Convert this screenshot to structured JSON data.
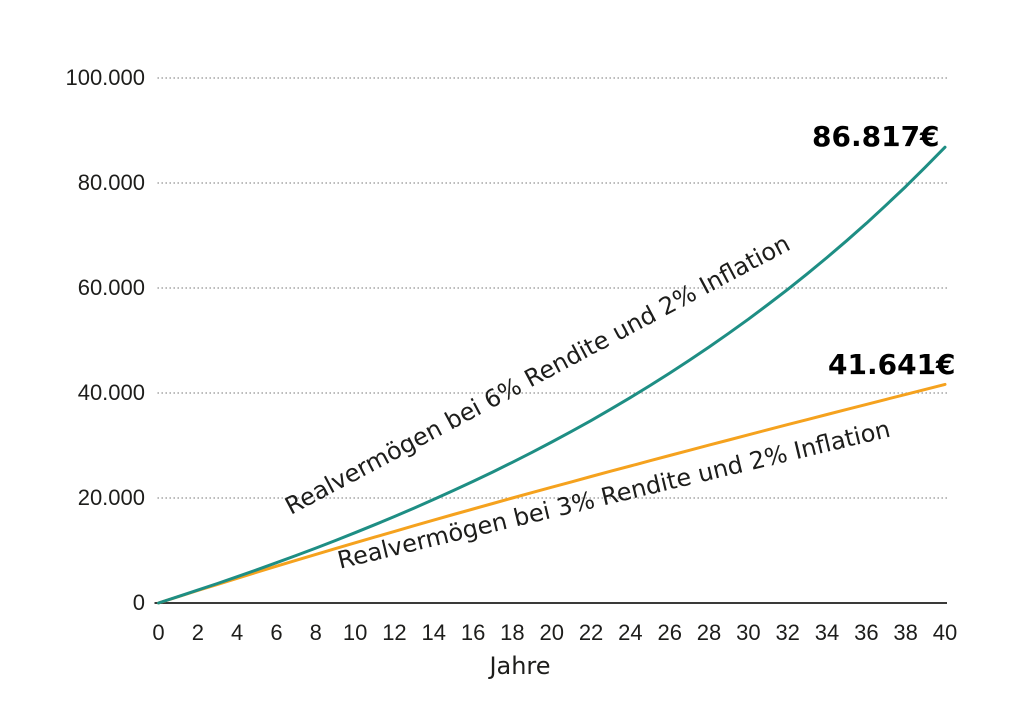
{
  "chart_data": {
    "type": "line",
    "title": "",
    "xlabel": "Jahre",
    "ylabel": "",
    "xlim": [
      0,
      40
    ],
    "ylim": [
      0,
      100000
    ],
    "grid": "horizontal-dotted",
    "legend_position": "inline-rotated-labels",
    "background_color": "#ffffff",
    "grid_color": "#9b9b9b",
    "axis_color": "#3a3a39",
    "text_color": "#1d1d1b",
    "x_ticks": [
      "0",
      "2",
      "4",
      "6",
      "8",
      "10",
      "12",
      "14",
      "16",
      "18",
      "20",
      "22",
      "24",
      "26",
      "28",
      "30",
      "32",
      "34",
      "36",
      "38",
      "40"
    ],
    "y_ticks": [
      {
        "value": 0,
        "label": "0"
      },
      {
        "value": 20000,
        "label": "20.000"
      },
      {
        "value": 40000,
        "label": "40.000"
      },
      {
        "value": 60000,
        "label": "60.000"
      },
      {
        "value": 80000,
        "label": "80.000"
      },
      {
        "value": 100000,
        "label": "100.000"
      }
    ],
    "x": [
      0,
      1,
      2,
      3,
      4,
      5,
      6,
      7,
      8,
      9,
      10,
      11,
      12,
      13,
      14,
      15,
      16,
      17,
      18,
      19,
      20,
      21,
      22,
      23,
      24,
      25,
      26,
      27,
      28,
      29,
      30,
      31,
      32,
      33,
      34,
      35,
      36,
      37,
      38,
      39,
      40
    ],
    "series": [
      {
        "name": "Realvermögen bei 6% Rendite und 2% Inflation",
        "color": "#1E8E84",
        "end_label": "86.817€",
        "end_value": 86817,
        "values": [
          0,
          1214,
          2452,
          3716,
          5006,
          6324,
          7672,
          9051,
          10463,
          11910,
          13394,
          14915,
          16477,
          18081,
          19728,
          21423,
          23165,
          24957,
          26803,
          28704,
          30664,
          32684,
          34766,
          36915,
          39133,
          41422,
          43788,
          46231,
          48755,
          51364,
          54062,
          56852,
          59739,
          62727,
          65817,
          69018,
          72332,
          75764,
          79319,
          83001,
          86817
        ]
      },
      {
        "name": "Realvermögen bei 3% Rendite und 2% Inflation",
        "color": "#F5A21E",
        "end_label": "41.641€",
        "end_value": 41641,
        "values": [
          0,
          1196,
          2379,
          3552,
          4713,
          5864,
          7004,
          8134,
          9255,
          10366,
          11468,
          12561,
          13646,
          14722,
          15791,
          16852,
          17905,
          18952,
          19991,
          21024,
          22051,
          23072,
          24088,
          25098,
          26102,
          27100,
          28096,
          29085,
          30070,
          31052,
          32030,
          33004,
          33974,
          34942,
          35907,
          36868,
          37828,
          38785,
          39740,
          40693,
          41641
        ]
      }
    ]
  }
}
